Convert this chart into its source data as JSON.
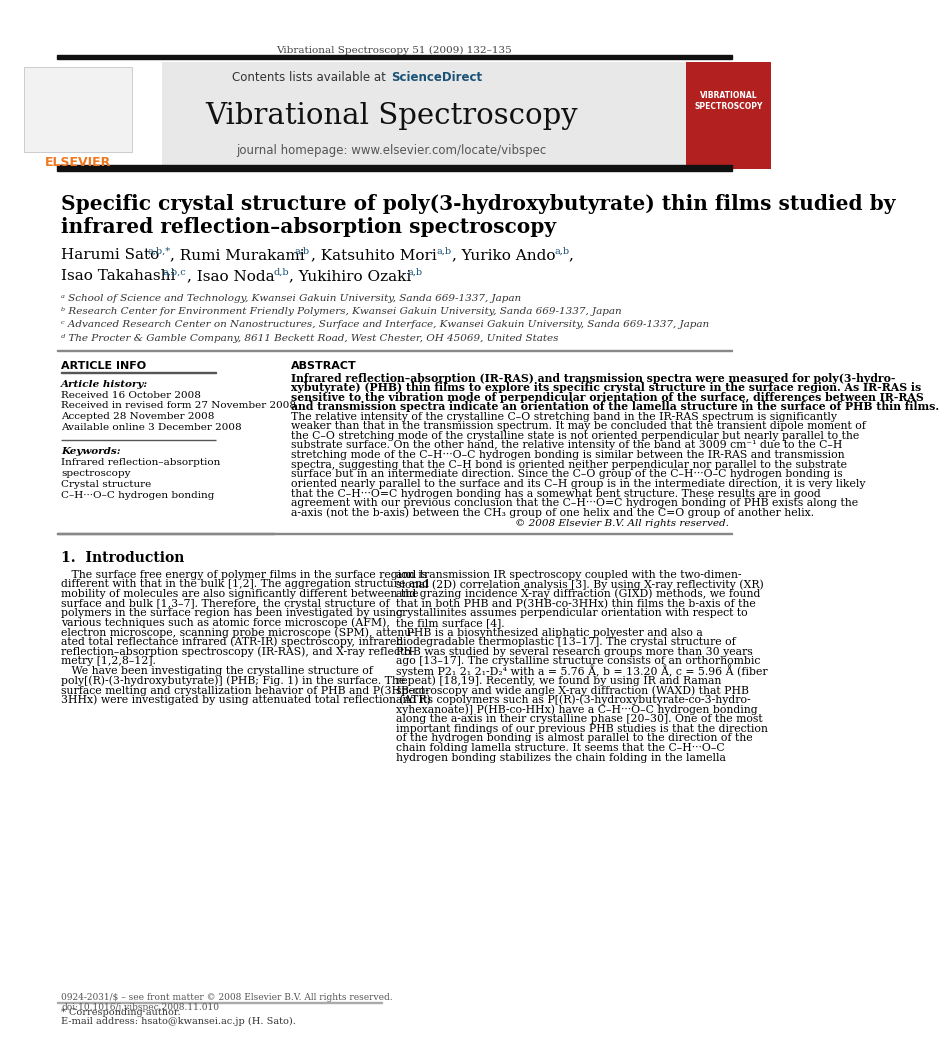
{
  "page_width": 9.92,
  "page_height": 13.23,
  "bg_color": "#ffffff",
  "top_journal_ref": "Vibrational Spectroscopy 51 (2009) 132–135",
  "journal_title": "Vibrational Spectroscopy",
  "contents_text": "Contents lists available at",
  "sciencedirect_text": "ScienceDirect",
  "homepage_text": "journal homepage: www.elsevier.com/locate/vibspec",
  "paper_title_line1": "Specific crystal structure of poly(3-hydroxybutyrate) thin films studied by",
  "paper_title_line2": "infrared reflection–absorption spectroscopy",
  "affil_a": "ᵃ School of Science and Technology, Kwansei Gakuin University, Sanda 669-1337, Japan",
  "affil_b": "ᵇ Research Center for Environment Friendly Polymers, Kwansei Gakuin University, Sanda 669-1337, Japan",
  "affil_c": "ᶜ Advanced Research Center on Nanostructures, Surface and Interface, Kwansei Gakuin University, Sanda 669-1337, Japan",
  "affil_d": "ᵈ The Procter & Gamble Company, 8611 Beckett Road, West Chester, OH 45069, United States",
  "article_info_title": "ARTICLE INFO",
  "abstract_title": "ABSTRACT",
  "article_history_label": "Article history:",
  "received_1": "Received 16 October 2008",
  "received_revised": "Received in revised form 27 November 2008",
  "accepted": "Accepted 28 November 2008",
  "available": "Available online 3 December 2008",
  "keywords_label": "Keywords:",
  "keyword1": "Infrared reflection–absorption",
  "keyword2": "spectroscopy",
  "keyword3": "Crystal structure",
  "keyword4": "C–H···O–C hydrogen bonding",
  "abstract_lines": [
    "Infrared reflection–absorption (IR-RAS) and transmission spectra were measured for poly(3-hydro-",
    "xybutyrate) (PHB) thin films to explore its specific crystal structure in the surface region. As IR-RAS is",
    "sensitive to the vibration mode of perpendicular orientation of the surface, differences between IR-RAS",
    "and transmission spectra indicate an orientation of the lamella structure in the surface of PHB thin films.",
    "The relative intensity of the crystalline C–O stretching band in the IR-RAS spectrum is significantly",
    "weaker than that in the transmission spectrum. It may be concluded that the transient dipole moment of",
    "the C–O stretching mode of the crystalline state is not oriented perpendicular but nearly parallel to the",
    "substrate surface. On the other hand, the relative intensity of the band at 3009 cm⁻¹ due to the C–H",
    "stretching mode of the C–H···O–C hydrogen bonding is similar between the IR-RAS and transmission",
    "spectra, suggesting that the C–H bond is oriented neither perpendicular nor parallel to the substrate",
    "surface but in an intermediate direction. Since the C–O group of the C–H···O–C hydrogen bonding is",
    "oriented nearly parallel to the surface and its C–H group is in the intermediate direction, it is very likely",
    "that the C–H···O=C hydrogen bonding has a somewhat bent structure. These results are in good",
    "agreement with our previous conclusion that the C–H···O=C hydrogen bonding of PHB exists along the",
    "a-axis (not the b-axis) between the CH₃ group of one helix and the C=O group of another helix."
  ],
  "abstract_copyright": "© 2008 Elsevier B.V. All rights reserved.",
  "intro_title": "1.  Introduction",
  "intro_col1_lines": [
    "   The surface free energy of polymer films in the surface region is",
    "different with that in the bulk [1,2]. The aggregation structure and",
    "mobility of molecules are also significantly different between the",
    "surface and bulk [1,3–7]. Therefore, the crystal structure of",
    "polymers in the surface region has been investigated by using",
    "various techniques such as atomic force microscope (AFM),",
    "electron microscope, scanning probe microscope (SPM), attenu-",
    "ated total reflectance infrared (ATR-IR) spectroscopy, infrared",
    "reflection–absorption spectroscopy (IR-RAS), and X-ray reflecto-",
    "metry [1,2,8–12].",
    "   We have been investigating the crystalline structure of",
    "poly[(R)-(3-hydroxybutyrate)] (PHB; Fig. 1) in the surface. The",
    "surface melting and crystallization behavior of PHB and P(3HB-co-",
    "3HHx) were investigated by using attenuated total reflection (ATR)"
  ],
  "intro_col2_lines": [
    "and transmission IR spectroscopy coupled with the two-dimen-",
    "sional (2D) correlation analysis [3]. By using X-ray reflectivity (XR)",
    "and grazing incidence X-ray diffraction (GIXD) methods, we found",
    "that in both PHB and P(3HB-co-3HHx) thin films the b-axis of the",
    "crystallinites assumes perpendicular orientation with respect to",
    "the film surface [4].",
    "   PHB is a biosynthesized aliphatic polyester and also a",
    "biodegradable thermoplastic [13–17]. The crystal structure of",
    "PHB was studied by several research groups more than 30 years",
    "ago [13–17]. The crystalline structure consists of an orthorhombic",
    "system P2₁ 2₁ 2₁-D₂⁴ with a = 5.76 Å, b = 13.20 Å, c = 5.96 Å (fiber",
    "repeat) [18,19]. Recently, we found by using IR and Raman",
    "spectroscopy and wide angle X-ray diffraction (WAXD) that PHB",
    "and its copolymers such as P[(R)-(3-hydroxybutyrate-co-3-hydro-",
    "xyhexanoate)] P(HB-co-HHx) have a C–H···O–C hydrogen bonding",
    "along the a-axis in their crystalline phase [20–30]. One of the most",
    "important findings of our previous PHB studies is that the direction",
    "of the hydrogen bonding is almost parallel to the direction of the",
    "chain folding lamella structure. It seems that the C–H···O–C",
    "hydrogen bonding stabilizes the chain folding in the lamella"
  ],
  "footer_text1": "0924-2031/$ – see front matter © 2008 Elsevier B.V. All rights reserved.",
  "footer_text2": "doi:10.1016/j.vibspec.2008.11.010",
  "footnote_corresponding": "* Corresponding author.",
  "footnote_email": "E-mail address: hsato@kwansei.ac.jp (H. Sato).",
  "header_bg": "#e8e8e8",
  "elsevier_orange": "#f07820",
  "sciencedirect_blue": "#1a5276",
  "accent_red": "#b22020"
}
